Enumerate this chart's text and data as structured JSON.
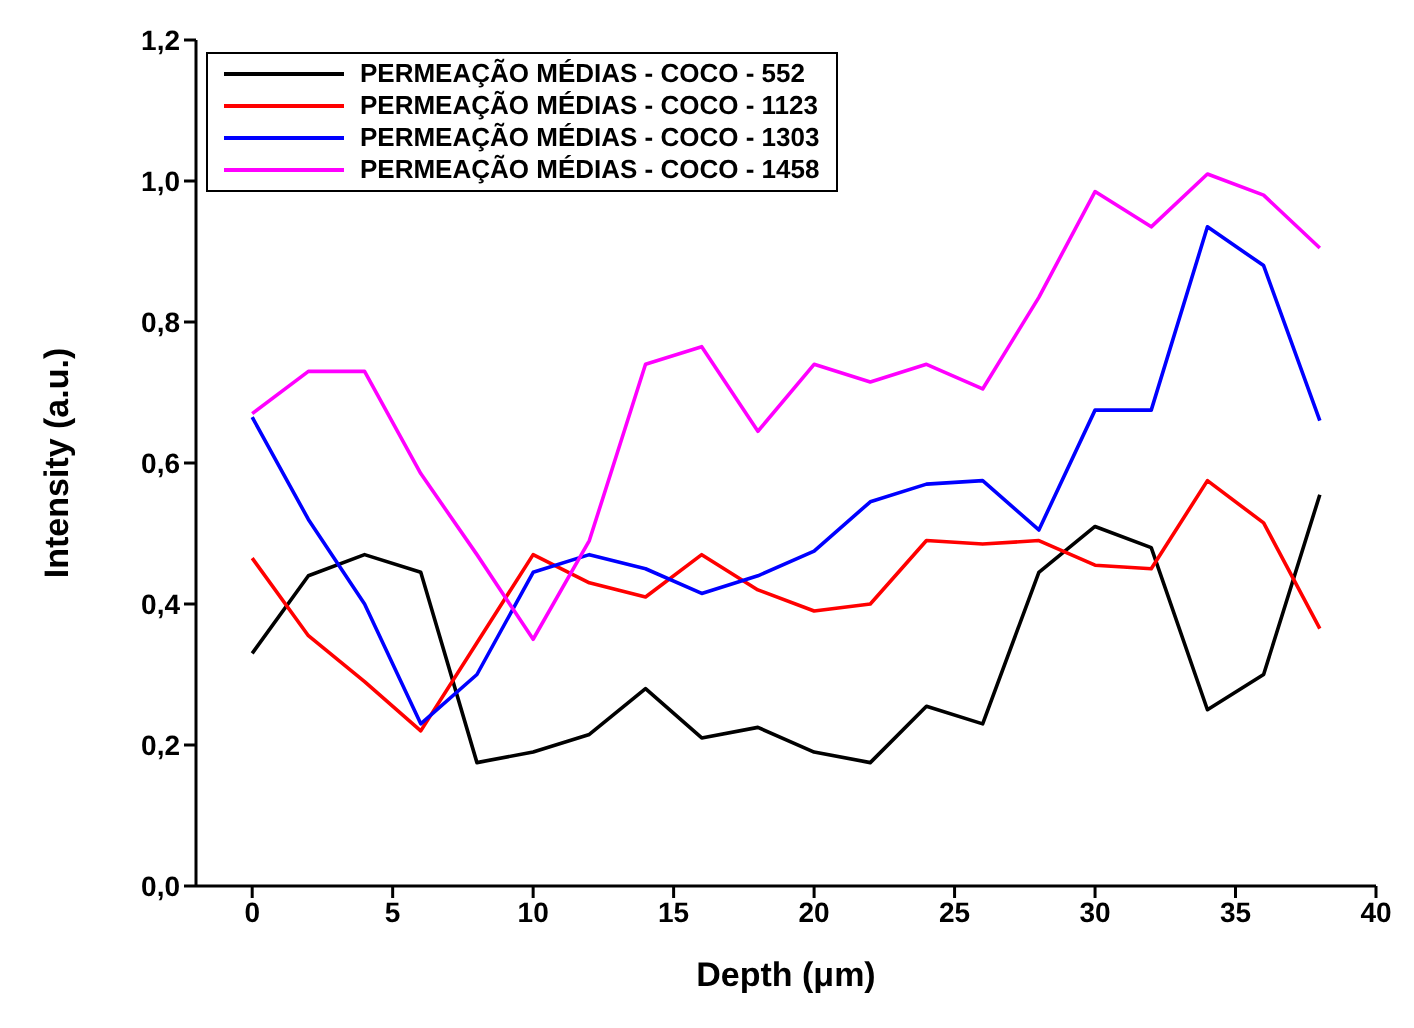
{
  "chart_data": {
    "type": "line",
    "xlabel": "Depth (μm)",
    "ylabel": "Intensity (a.u.)",
    "x": [
      0,
      2,
      4,
      6,
      8,
      10,
      12,
      14,
      16,
      18,
      20,
      22,
      24,
      26,
      28,
      30,
      32,
      34,
      36,
      38
    ],
    "series": [
      {
        "name": "PERMEAÇÃO MÉDIAS - COCO - 552",
        "color": "#000000",
        "values": [
          0.33,
          0.44,
          0.47,
          0.445,
          0.175,
          0.19,
          0.215,
          0.28,
          0.21,
          0.225,
          0.19,
          0.175,
          0.255,
          0.23,
          0.445,
          0.51,
          0.48,
          0.25,
          0.3,
          0.555
        ]
      },
      {
        "name": "PERMEAÇÃO MÉDIAS - COCO - 1123",
        "color": "#ff0000",
        "values": [
          0.465,
          0.355,
          0.29,
          0.22,
          0.345,
          0.47,
          0.43,
          0.41,
          0.47,
          0.42,
          0.39,
          0.4,
          0.49,
          0.485,
          0.49,
          0.455,
          0.45,
          0.575,
          0.515,
          0.365
        ]
      },
      {
        "name": "PERMEAÇÃO MÉDIAS - COCO - 1303",
        "color": "#0000ff",
        "values": [
          0.665,
          0.52,
          0.4,
          0.23,
          0.3,
          0.445,
          0.47,
          0.45,
          0.415,
          0.44,
          0.475,
          0.545,
          0.57,
          0.575,
          0.505,
          0.675,
          0.675,
          0.935,
          0.88,
          0.66
        ]
      },
      {
        "name": "PERMEAÇÃO MÉDIAS - COCO - 1458",
        "color": "#ff00ff",
        "values": [
          0.67,
          0.73,
          0.73,
          0.585,
          0.47,
          0.35,
          0.49,
          0.74,
          0.765,
          0.645,
          0.74,
          0.715,
          0.74,
          0.705,
          0.835,
          0.985,
          0.935,
          1.01,
          0.98,
          0.905
        ]
      }
    ],
    "xlim": [
      -2,
      40
    ],
    "xticks": [
      0,
      5,
      10,
      15,
      20,
      25,
      30,
      35,
      40
    ],
    "ylim": [
      0,
      1.2
    ],
    "yticks": [
      {
        "value": 0,
        "label": "0,0"
      },
      {
        "value": 0.2,
        "label": "0,2"
      },
      {
        "value": 0.4,
        "label": "0,4"
      },
      {
        "value": 0.6,
        "label": "0,6"
      },
      {
        "value": 0.8,
        "label": "0,8"
      },
      {
        "value": 1,
        "label": "1,0"
      },
      {
        "value": 1.2,
        "label": "1,2"
      }
    ],
    "legend": "top left",
    "grid": false,
    "marker": "none",
    "line_style": "solid"
  }
}
